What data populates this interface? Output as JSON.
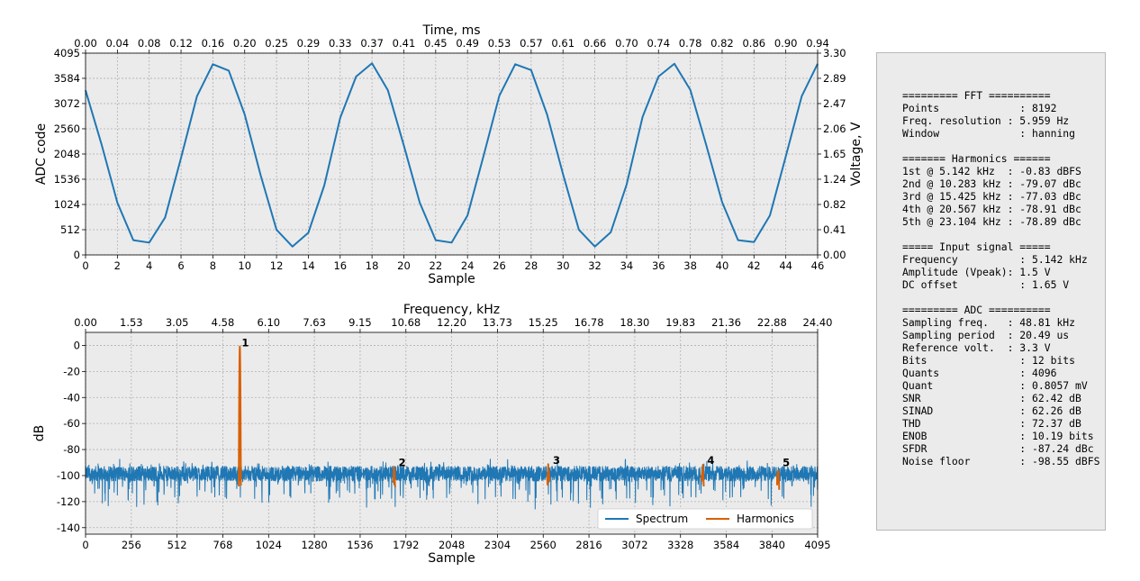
{
  "chart_data": [
    {
      "type": "line",
      "xlabel": "Sample",
      "ylabel": "ADC code",
      "ylabel_right": "Voltage, V",
      "xlabel_top": "Time, ms",
      "xlim": [
        0,
        46
      ],
      "ylim": [
        0,
        4095
      ],
      "ylim_right": [
        0,
        3.3
      ],
      "x_ticks": [
        "0",
        "2",
        "4",
        "6",
        "8",
        "10",
        "12",
        "14",
        "16",
        "18",
        "20",
        "22",
        "24",
        "26",
        "28",
        "30",
        "32",
        "34",
        "36",
        "38",
        "40",
        "42",
        "44",
        "46"
      ],
      "y_ticks": [
        "0",
        "512",
        "1024",
        "1536",
        "2048",
        "2560",
        "3072",
        "3584",
        "4095"
      ],
      "y_ticks_right": [
        "0.00",
        "0.41",
        "0.82",
        "1.24",
        "1.65",
        "2.06",
        "2.47",
        "2.89",
        "3.30"
      ],
      "x_ticks_top": [
        "0.00",
        "0.04",
        "0.08",
        "0.12",
        "0.16",
        "0.20",
        "0.25",
        "0.29",
        "0.33",
        "0.37",
        "0.41",
        "0.45",
        "0.49",
        "0.53",
        "0.57",
        "0.61",
        "0.66",
        "0.70",
        "0.74",
        "0.78",
        "0.82",
        "0.86",
        "0.90",
        "0.94"
      ],
      "grid": true,
      "series": [
        {
          "color": "#1f77b4",
          "x": [
            0,
            1,
            2,
            3,
            4,
            5,
            6,
            7,
            8,
            9,
            10,
            11,
            12,
            13,
            14,
            15,
            16,
            17,
            18,
            19,
            20,
            21,
            22,
            23,
            24,
            25,
            26,
            27,
            28,
            29,
            30,
            31,
            32,
            33,
            34,
            35,
            36,
            37,
            38,
            39,
            40,
            41,
            42,
            43,
            44,
            45,
            46
          ],
          "values": [
            3340,
            2250,
            1060,
            300,
            250,
            760,
            1970,
            3220,
            3870,
            3740,
            2850,
            1620,
            510,
            170,
            450,
            1410,
            2780,
            3620,
            3890,
            3340,
            2220,
            1060,
            300,
            250,
            800,
            2000,
            3230,
            3870,
            3750,
            2850,
            1640,
            510,
            170,
            460,
            1430,
            2800,
            3620,
            3880,
            3350,
            2230,
            1070,
            300,
            260,
            800,
            2000,
            3220,
            3880
          ]
        }
      ]
    },
    {
      "type": "line",
      "xlabel": "Sample",
      "ylabel": "dB",
      "xlabel_top": "Frequency, kHz",
      "xlim": [
        0,
        4095
      ],
      "ylim": [
        -145,
        10
      ],
      "x_ticks": [
        "0",
        "256",
        "512",
        "768",
        "1024",
        "1280",
        "1536",
        "1792",
        "2048",
        "2304",
        "2560",
        "2816",
        "3072",
        "3328",
        "3584",
        "3840",
        "4095"
      ],
      "y_ticks": [
        "0",
        "-20",
        "-40",
        "-60",
        "-80",
        "-100",
        "-120",
        "-140"
      ],
      "x_ticks_top": [
        "0.00",
        "1.53",
        "3.05",
        "4.58",
        "6.10",
        "7.63",
        "9.15",
        "10.68",
        "12.20",
        "13.73",
        "15.25",
        "16.78",
        "18.30",
        "19.83",
        "21.36",
        "22.88",
        "24.40"
      ],
      "grid": true,
      "legend": "bottom-right",
      "noise_floor": -98.55,
      "series": [
        {
          "name": "Spectrum",
          "color": "#1f77b4"
        },
        {
          "name": "Harmonics",
          "color": "#d95f02"
        }
      ],
      "harmonics": [
        {
          "label": "1",
          "x": 863,
          "peak_db": -0.83
        },
        {
          "label": "2",
          "x": 1726,
          "peak_db": -95
        },
        {
          "label": "3",
          "x": 2589,
          "peak_db": -93
        },
        {
          "label": "4",
          "x": 3452,
          "peak_db": -93
        },
        {
          "label": "5",
          "x": 3874,
          "peak_db": -95
        }
      ]
    }
  ],
  "info_panel": {
    "lines": [
      "========= FFT ==========",
      "Points             : 8192",
      "Freq. resolution : 5.959 Hz",
      "Window             : hanning",
      "",
      "======= Harmonics ======",
      "1st @ 5.142 kHz  : -0.83 dBFS",
      "2nd @ 10.283 kHz : -79.07 dBc",
      "3rd @ 15.425 kHz : -77.03 dBc",
      "4th @ 20.567 kHz : -78.91 dBc",
      "5th @ 23.104 kHz : -78.89 dBc",
      "",
      "===== Input signal =====",
      "Frequency          : 5.142 kHz",
      "Amplitude (Vpeak): 1.5 V",
      "DC offset          : 1.65 V",
      "",
      "========= ADC ==========",
      "Sampling freq.   : 48.81 kHz",
      "Sampling period  : 20.49 us",
      "Reference volt.  : 3.3 V",
      "Bits               : 12 bits",
      "Quants             : 4096",
      "Quant              : 0.8057 mV",
      "SNR                : 62.42 dB",
      "SINAD              : 62.26 dB",
      "THD                : 72.37 dB",
      "ENOB               : 10.19 bits",
      "SFDR               : -87.24 dBc",
      "Noise floor        : -98.55 dBFS"
    ]
  }
}
